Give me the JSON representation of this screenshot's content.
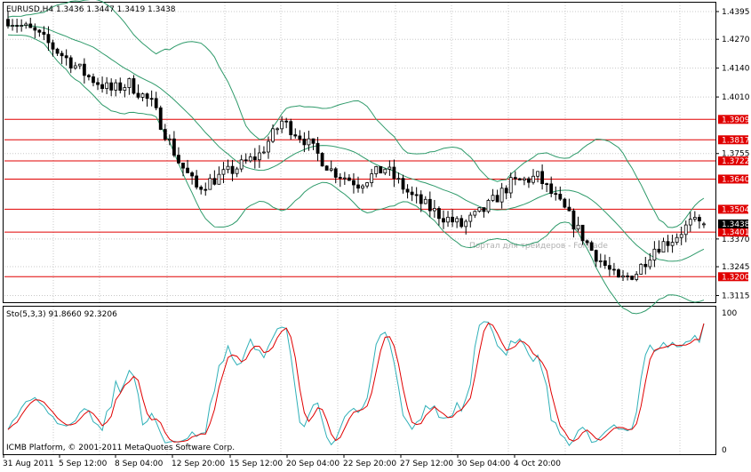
{
  "chart_data": [
    {
      "type": "candlestick",
      "header": "EURUSD,H4  1.3436 1.3447 1.3419 1.3438",
      "symbol": "EURUSD",
      "timeframe": "H4",
      "last_bar": {
        "open": 1.3436,
        "high": 1.3447,
        "low": 1.3419,
        "close": 1.3438
      },
      "price_ticks": [
        "1.4395",
        "1.4270",
        "1.4140",
        "1.4010",
        "1.3755",
        "1.3370",
        "1.3245",
        "1.3115"
      ],
      "price_range": [
        1.3085,
        1.4435
      ],
      "horizontal_levels": [
        1.3909,
        1.3817,
        1.3722,
        1.364,
        1.3504,
        1.3401,
        1.32
      ],
      "current_price_label": "1.3438",
      "bollinger_bands": true,
      "watermark": "Портал для трейдеров - ForTrade",
      "bar_count": 156
    },
    {
      "type": "line",
      "header": "Sto(5,3,3) 91.8660 92.3206",
      "name": "Sto(5,3,3)",
      "main_value": "91.8660",
      "signal_value": "92.3206",
      "ylim": [
        0,
        100
      ],
      "y_ticks": [
        "100",
        "0"
      ]
    }
  ],
  "x_axis": {
    "labels": [
      "31 Aug 2011",
      "5 Sep 12:00",
      "8 Sep 04:00",
      "12 Sep 20:00",
      "15 Sep 12:00",
      "20 Sep 04:00",
      "22 Sep 20:00",
      "27 Sep 12:00",
      "30 Sep 04:00",
      "4 Oct 20:00"
    ]
  },
  "footer": {
    "copyright": "ICMB Platform, © 2001-2011 MetaQuotes Software Corp."
  },
  "colors": {
    "background": "#ffffff",
    "candles": "#000000",
    "bands": "#2e9a6a",
    "levels": "#e00000",
    "stoch_main": "#30b0b8",
    "stoch_signal": "#e00000",
    "grid": "#c8c8c8"
  }
}
